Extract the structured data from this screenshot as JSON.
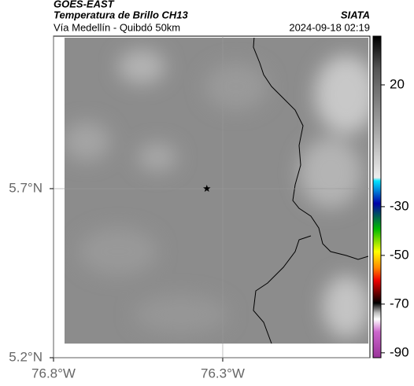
{
  "header": {
    "title": "GOES-EAST",
    "subtitle": "Temperatura de Brillo CH13",
    "route": "Vía Medellín - Quibdó 50km",
    "source": "SIATA",
    "timestamp": "2024-09-18 02:19"
  },
  "map": {
    "xlim": [
      -76.8,
      -75.865
    ],
    "ylim": [
      5.2,
      6.151
    ],
    "xticks": [
      {
        "value": -76.8,
        "label": "76.8°W"
      },
      {
        "value": -76.3,
        "label": "76.3°W"
      }
    ],
    "yticks": [
      {
        "value": 5.2,
        "label": "5.2°N"
      },
      {
        "value": 5.7,
        "label": "5.7°N"
      }
    ],
    "grid": true,
    "marker": {
      "lon": -76.347,
      "lat": 5.7
    }
  },
  "colorbar": {
    "lim": [
      40,
      -92
    ],
    "ticks": [
      20,
      -30,
      -50,
      -70,
      -90
    ]
  }
}
